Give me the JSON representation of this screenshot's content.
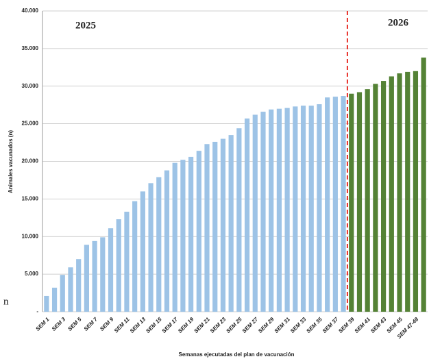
{
  "chart_data": {
    "type": "bar",
    "x_label": "Semanas ejecutadas del plan de vacunación",
    "y_label": "Animales vacunados (n)",
    "side_text": "n",
    "categories": [
      "SEM 1",
      null,
      "SEM 3",
      null,
      "SEM 5",
      null,
      "SEM 7",
      null,
      "SEM 9",
      null,
      "SEM 11",
      null,
      "SEM 13",
      null,
      "SEM 15",
      null,
      "SEM 17",
      null,
      "SEM 19",
      null,
      "SEM 21",
      null,
      "SEM 23",
      null,
      "SEM 25",
      null,
      "SEM 27",
      null,
      "SEM 29",
      null,
      "SEM 31",
      null,
      "SEM 33",
      null,
      "SEM 35",
      null,
      "SEM 37",
      null,
      "SEM 39",
      null,
      "SEM 41",
      null,
      "SEM 43",
      null,
      "SEM 45",
      null,
      "SEM 47-48",
      null
    ],
    "series": [
      {
        "name": "2025",
        "color": "#9dc3e6",
        "label_color": "#3b5a98",
        "values": [
          2100,
          3200,
          4900,
          5900,
          7000,
          8900,
          9400,
          9900,
          11100,
          12300,
          13300,
          14700,
          16000,
          17100,
          17900,
          18800,
          19800,
          20200,
          20600,
          21400,
          22300,
          22600,
          23000,
          23500,
          24400,
          25700,
          26200,
          26600,
          26900,
          27000,
          27100,
          27300,
          27400,
          27400,
          27600,
          28500,
          28600,
          28700,
          null,
          null,
          null,
          null,
          null,
          null,
          null,
          null,
          null,
          null
        ]
      },
      {
        "name": "2026",
        "color": "#548235",
        "label_color": "#548235",
        "values": [
          null,
          null,
          null,
          null,
          null,
          null,
          null,
          null,
          null,
          null,
          null,
          null,
          null,
          null,
          null,
          null,
          null,
          null,
          null,
          null,
          null,
          null,
          null,
          null,
          null,
          null,
          null,
          null,
          null,
          null,
          null,
          null,
          null,
          null,
          null,
          null,
          null,
          null,
          29000,
          29200,
          29600,
          30300,
          30700,
          31300,
          31700,
          31900,
          32000,
          33800
        ]
      }
    ],
    "divider_color": "#e8302a",
    "ylim": [
      0,
      40000
    ],
    "yticks": [
      {
        "value": 0,
        "label": "-"
      },
      {
        "value": 5000,
        "label": "5.000"
      },
      {
        "value": 10000,
        "label": "10.000"
      },
      {
        "value": 15000,
        "label": "15.000"
      },
      {
        "value": 20000,
        "label": "20.000"
      },
      {
        "value": 25000,
        "label": "25.000"
      },
      {
        "value": 30000,
        "label": "30.000"
      },
      {
        "value": 35000,
        "label": "35.000"
      },
      {
        "value": 40000,
        "label": "40.000"
      }
    ],
    "grid": true
  }
}
